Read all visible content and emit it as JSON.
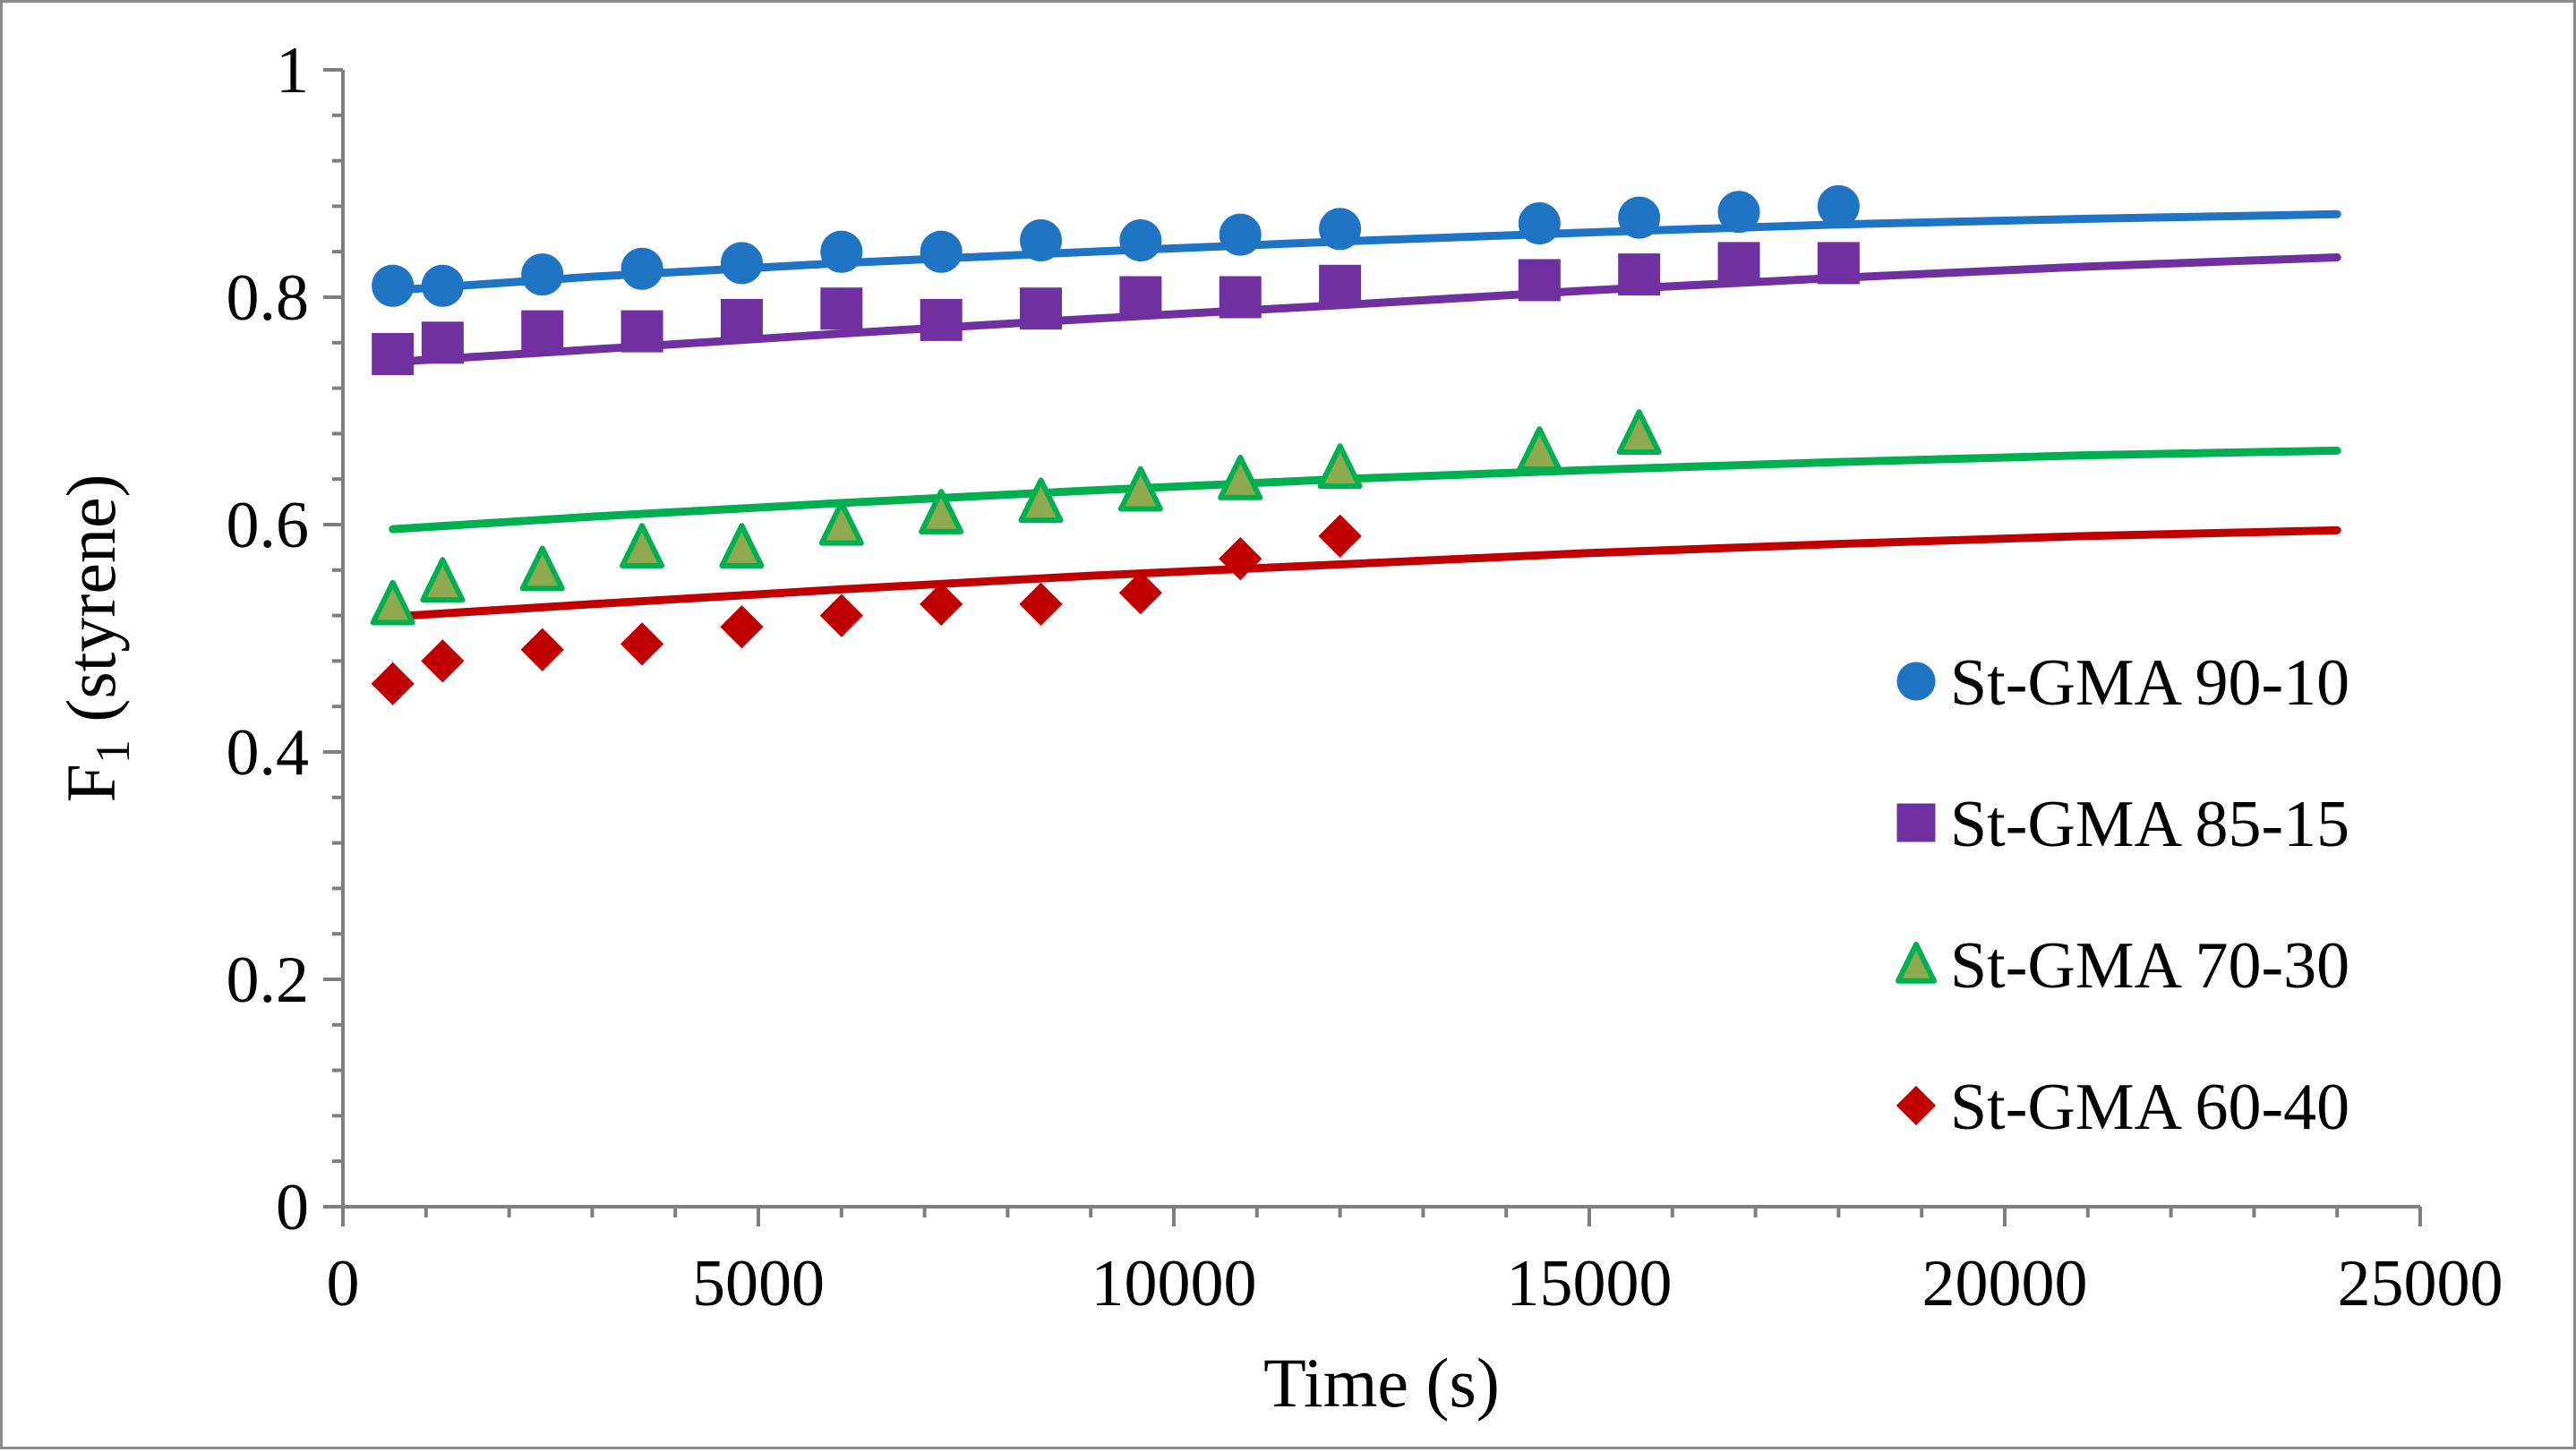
{
  "chart_data": {
    "type": "scatter",
    "title": "",
    "xlabel": "Time (s)",
    "ylabel": {
      "main": "F",
      "sub": "1",
      "suffix": " (styrene)"
    },
    "xlim": [
      0,
      25000
    ],
    "ylim": [
      0,
      1
    ],
    "x_ticks": [
      0,
      5000,
      10000,
      15000,
      20000,
      25000
    ],
    "x_tick_labels": [
      "0",
      "5000",
      "10000",
      "15000",
      "20000",
      "25000"
    ],
    "y_ticks": [
      0,
      0.2,
      0.4,
      0.6,
      0.8,
      1
    ],
    "y_tick_labels": [
      "0",
      "0.2",
      "0.4",
      "0.6",
      "0.8",
      "1"
    ],
    "x_minor_step": 1000,
    "y_minor_step": 0.04,
    "grid": false,
    "legend_position": "right",
    "series": [
      {
        "name": "St-GMA 90-10",
        "marker": "circle",
        "color": "#1f74c4",
        "points": [
          [
            600,
            0.81
          ],
          [
            1200,
            0.81
          ],
          [
            2400,
            0.82
          ],
          [
            3600,
            0.825
          ],
          [
            4800,
            0.83
          ],
          [
            6000,
            0.84
          ],
          [
            7200,
            0.84
          ],
          [
            8400,
            0.85
          ],
          [
            9600,
            0.85
          ],
          [
            10800,
            0.855
          ],
          [
            12000,
            0.86
          ],
          [
            14400,
            0.865
          ],
          [
            15600,
            0.87
          ],
          [
            16800,
            0.875
          ],
          [
            18000,
            0.88
          ]
        ],
        "fit": [
          [
            600,
            0.806
          ],
          [
            3000,
            0.818
          ],
          [
            6000,
            0.83
          ],
          [
            9000,
            0.84
          ],
          [
            12000,
            0.849
          ],
          [
            15000,
            0.857
          ],
          [
            18000,
            0.864
          ],
          [
            21000,
            0.869
          ],
          [
            24000,
            0.873
          ]
        ]
      },
      {
        "name": "St-GMA 85-15",
        "marker": "square",
        "color": "#7030a0",
        "points": [
          [
            600,
            0.75
          ],
          [
            1200,
            0.76
          ],
          [
            2400,
            0.77
          ],
          [
            3600,
            0.77
          ],
          [
            4800,
            0.78
          ],
          [
            6000,
            0.79
          ],
          [
            7200,
            0.78
          ],
          [
            8400,
            0.79
          ],
          [
            9600,
            0.8
          ],
          [
            10800,
            0.8
          ],
          [
            12000,
            0.81
          ],
          [
            14400,
            0.815
          ],
          [
            15600,
            0.82
          ],
          [
            16800,
            0.83
          ],
          [
            18000,
            0.83
          ]
        ],
        "fit": [
          [
            600,
            0.743
          ],
          [
            3000,
            0.754
          ],
          [
            6000,
            0.768
          ],
          [
            9000,
            0.781
          ],
          [
            12000,
            0.793
          ],
          [
            15000,
            0.806
          ],
          [
            18000,
            0.817
          ],
          [
            21000,
            0.827
          ],
          [
            24000,
            0.835
          ]
        ]
      },
      {
        "name": "St-GMA 70-30",
        "marker": "triangle",
        "color": "#00b050",
        "fill": "#8faa4e",
        "points": [
          [
            600,
            0.53
          ],
          [
            1200,
            0.55
          ],
          [
            2400,
            0.56
          ],
          [
            3600,
            0.58
          ],
          [
            4800,
            0.58
          ],
          [
            6000,
            0.6
          ],
          [
            7200,
            0.61
          ],
          [
            8400,
            0.62
          ],
          [
            9600,
            0.63
          ],
          [
            10800,
            0.64
          ],
          [
            12000,
            0.65
          ],
          [
            14400,
            0.665
          ],
          [
            15600,
            0.68
          ]
        ],
        "fit": [
          [
            600,
            0.596
          ],
          [
            3000,
            0.607
          ],
          [
            6000,
            0.619
          ],
          [
            9000,
            0.63
          ],
          [
            12000,
            0.64
          ],
          [
            15000,
            0.648
          ],
          [
            18000,
            0.655
          ],
          [
            21000,
            0.661
          ],
          [
            24000,
            0.665
          ]
        ]
      },
      {
        "name": "St-GMA 60-40",
        "marker": "diamond",
        "color": "#c00000",
        "points": [
          [
            600,
            0.46
          ],
          [
            1200,
            0.48
          ],
          [
            2400,
            0.49
          ],
          [
            3600,
            0.495
          ],
          [
            4800,
            0.51
          ],
          [
            6000,
            0.52
          ],
          [
            7200,
            0.53
          ],
          [
            8400,
            0.53
          ],
          [
            9600,
            0.54
          ],
          [
            10800,
            0.57
          ],
          [
            12000,
            0.59
          ]
        ],
        "fit": [
          [
            800,
            0.52
          ],
          [
            3000,
            0.53
          ],
          [
            6000,
            0.543
          ],
          [
            9000,
            0.555
          ],
          [
            12000,
            0.565
          ],
          [
            15000,
            0.575
          ],
          [
            18000,
            0.583
          ],
          [
            21000,
            0.59
          ],
          [
            24000,
            0.595
          ]
        ]
      }
    ]
  }
}
